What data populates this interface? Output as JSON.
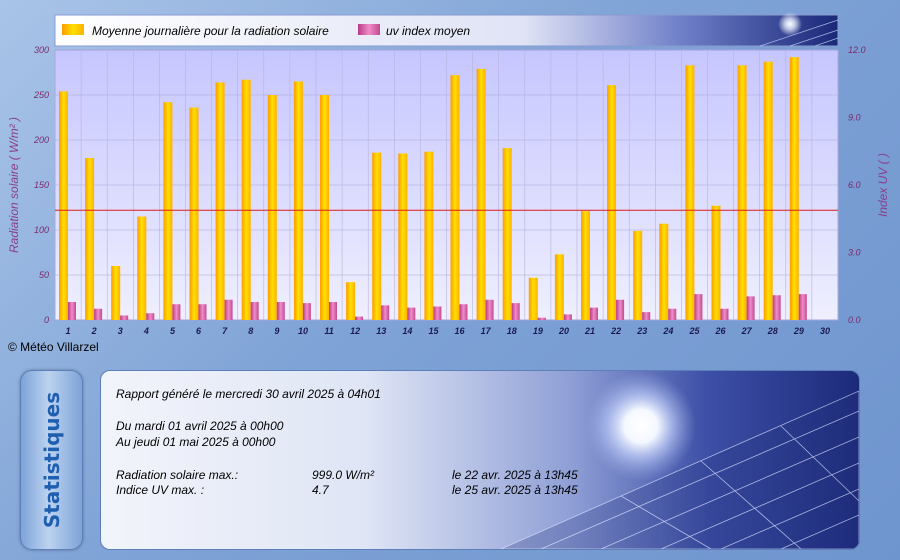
{
  "legend": {
    "series1": "Moyenne journalière pour la radiation solaire",
    "series2": "uv index moyen"
  },
  "axes": {
    "left_label": "Radiation solaire ( W/m² )",
    "right_label": "Index UV (  )"
  },
  "copyright": "© Météo Villarzel",
  "stats_tab_label": "Statistiques",
  "report": {
    "generated": "Rapport généré le mercredi 30 avril 2025 à 04h01",
    "from": "Du mardi 01 avril 2025 à 00h00",
    "to": "Au jeudi 01 mai 2025 à 00h00",
    "rows": [
      {
        "label": "Radiation solaire max.:",
        "value": "999.0 W/m²",
        "when": "le 22 avr. 2025 à 13h45"
      },
      {
        "label": "Indice UV max. :",
        "value": "4.7",
        "when": "le 25 avr. 2025 à 13h45"
      }
    ]
  },
  "colors": {
    "bar1_top": "#ffd400",
    "bar1_bottom": "#ffa000",
    "bar2": "#d04f9a",
    "average_line": "#d81f1f",
    "plot_bg_top": "#c8c8ff",
    "plot_bg_bottom": "#ececff"
  },
  "chart_data": {
    "type": "bar",
    "categories": [
      "1",
      "2",
      "3",
      "4",
      "5",
      "6",
      "7",
      "8",
      "9",
      "10",
      "11",
      "12",
      "13",
      "14",
      "15",
      "16",
      "17",
      "18",
      "19",
      "20",
      "21",
      "22",
      "23",
      "24",
      "25",
      "26",
      "27",
      "28",
      "29",
      "30"
    ],
    "series": [
      {
        "name": "Moyenne journalière pour la radiation solaire",
        "axis": "left",
        "values": [
          254,
          180,
          60,
          115,
          242,
          236,
          264,
          267,
          250,
          265,
          250,
          42,
          186,
          185,
          187,
          272,
          279,
          191,
          47,
          73,
          121,
          261,
          99,
          107,
          283,
          127,
          283,
          287,
          292,
          null
        ]
      },
      {
        "name": "uv index moyen",
        "axis": "right",
        "values": [
          0.8,
          0.5,
          0.2,
          0.3,
          0.7,
          0.7,
          0.9,
          0.8,
          0.8,
          0.75,
          0.8,
          0.15,
          0.65,
          0.55,
          0.6,
          0.7,
          0.9,
          0.75,
          0.1,
          0.25,
          0.55,
          0.9,
          0.35,
          0.5,
          1.15,
          0.5,
          1.05,
          1.1,
          1.15,
          null
        ]
      }
    ],
    "average_line": 122,
    "ylim_left": [
      0,
      300
    ],
    "yticks_left": [
      "0",
      "50",
      "100",
      "150",
      "200",
      "250",
      "300"
    ],
    "ylim_right": [
      0,
      12
    ],
    "yticks_right": [
      "0.0",
      "3.0",
      "6.0",
      "9.0",
      "12.0"
    ],
    "grid": true
  }
}
